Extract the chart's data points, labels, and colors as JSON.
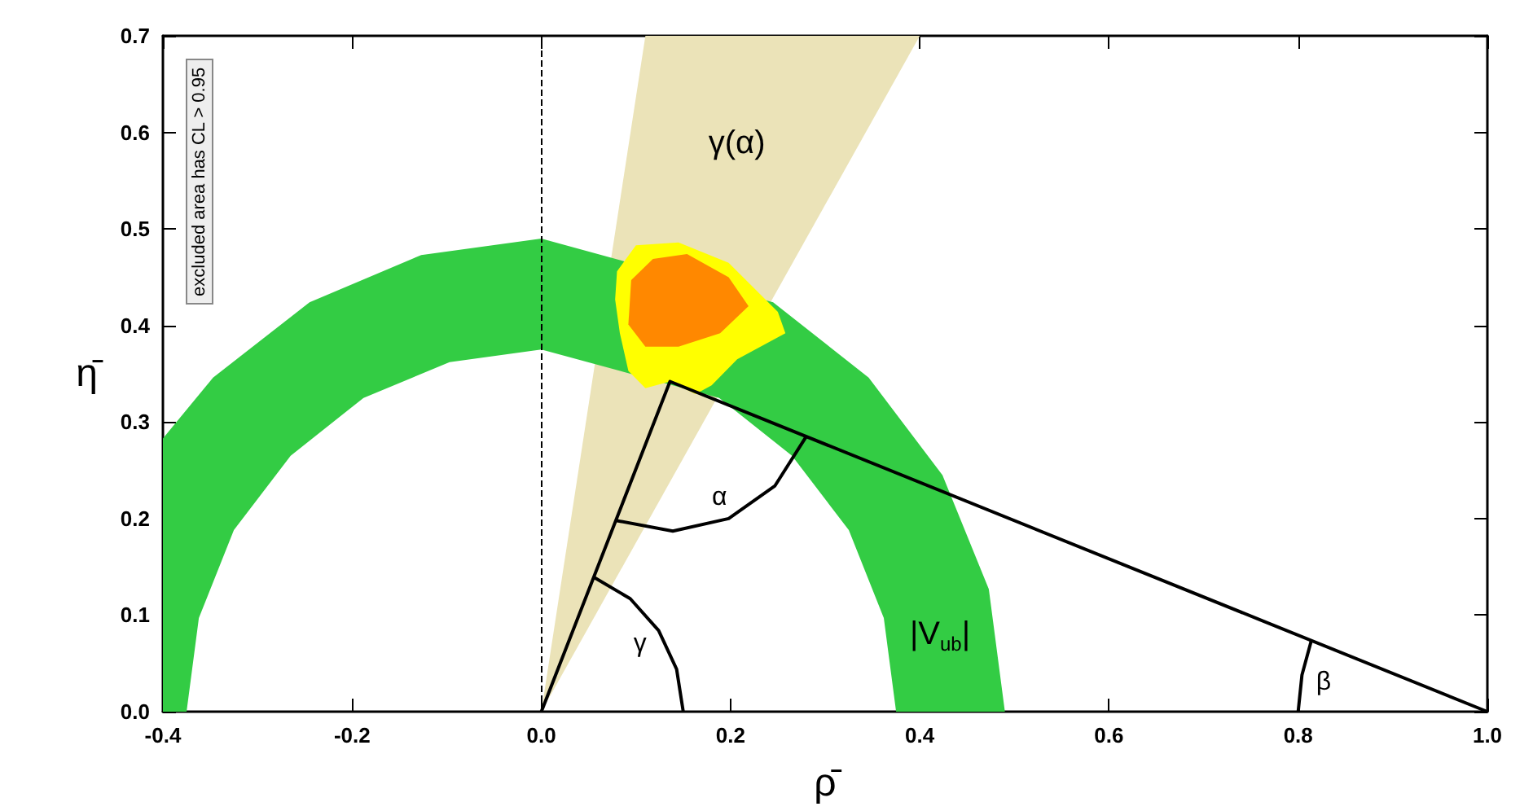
{
  "chart_data": {
    "type": "line",
    "xlabel": "ρ̄",
    "ylabel": "η̄",
    "xlim": [
      -0.4,
      1.0
    ],
    "ylim": [
      0,
      0.7
    ],
    "xticks": [
      -0.4,
      -0.2,
      {
        "value": 0,
        "label": "0.0"
      },
      0.2,
      0.4,
      0.6,
      0.8,
      {
        "value": 1,
        "label": "1.0"
      }
    ],
    "yticks": [
      {
        "value": 0,
        "label": "0.0"
      },
      0.1,
      0.2,
      0.3,
      0.4,
      0.5,
      0.6,
      0.7
    ],
    "grid": false,
    "marker": "none",
    "ref_lines": [
      {
        "axis": "x",
        "value": 0,
        "color": "#000000",
        "line_style": "dashed"
      }
    ],
    "series": [
      {
        "type": "area",
        "name": "γ(α)",
        "color": "#ebe3b8",
        "x": [
          0,
          0.11,
          0.4
        ],
        "values": [
          0,
          0.7,
          0.7
        ]
      },
      {
        "type": "area",
        "name": "|V$_{ub}$|",
        "color": "#33cc44",
        "x": [
          -0.4,
          -0.347,
          -0.245,
          -0.127,
          0,
          0.127,
          0.245,
          0.346,
          0.424,
          0.473,
          0.49,
          0.375,
          0.362,
          0.325,
          0.265,
          0.188,
          0.097,
          0,
          -0.097,
          -0.188,
          -0.265,
          -0.325,
          -0.362,
          -0.375,
          -0.4
        ],
        "values": [
          0.283,
          0.346,
          0.424,
          0.473,
          0.49,
          null,
          0.424,
          0.346,
          0.245,
          0.127,
          0,
          0,
          0.097,
          0.188,
          0.265,
          0.325,
          null,
          0.375,
          0.362,
          0.325,
          0.265,
          0.188,
          0.097,
          0,
          0
        ]
      },
      {
        "type": "area",
        "color": "#ffff00",
        "x": [
          0.08,
          0.1,
          0.145,
          0.198,
          0.25,
          0.258,
          0.207,
          0.18,
          0.163,
          0.136,
          0.11,
          0.092,
          0.083,
          0.078
        ],
        "values": [
          0.456,
          0.483,
          0.486,
          0.465,
          0.414,
          0.392,
          0.365,
          0.338,
          0.329,
          0.342,
          0.335,
          0.353,
          0.392,
          0.427
        ]
      },
      {
        "type": "area",
        "color": "#ff8800",
        "x": [
          0.095,
          0.118,
          0.154,
          0.198,
          0.219,
          0.189,
          0.145,
          0.11,
          0.092
        ],
        "values": [
          0.447,
          0.469,
          0.474,
          0.45,
          0.42,
          0.392,
          0.378,
          0.378,
          0.401
        ]
      },
      {
        "color": "#000000",
        "x": [
          0,
          0.136,
          1
        ],
        "values": [
          0,
          0.342,
          0
        ]
      },
      {
        "type": "line",
        "name": "γ",
        "color": "#000000",
        "x": [
          0.15,
          0.143,
          0.124,
          0.094,
          0.056
        ],
        "values": [
          0,
          0.044,
          0.084,
          0.117,
          0.139
        ]
      },
      {
        "type": "line",
        "name": "α",
        "color": "#000000",
        "x": [
          0.079,
          0.139,
          0.198,
          0.247,
          0.28
        ],
        "values": [
          0.198,
          0.187,
          0.2,
          0.234,
          0.285
        ]
      },
      {
        "type": "line",
        "name": "β",
        "color": "#000000",
        "x": [
          0.8,
          0.804,
          0.814
        ],
        "values": [
          0,
          0.038,
          0.074
        ]
      }
    ],
    "annotations": [
      "excluded area has CL > 0.95"
    ]
  }
}
